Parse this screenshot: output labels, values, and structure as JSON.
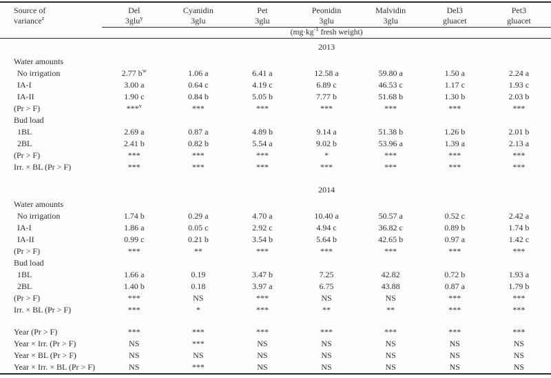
{
  "table": {
    "corner": {
      "line1": "Source of",
      "line2": "variance",
      "sup": "z"
    },
    "columns": [
      {
        "name": "Del",
        "sub": "3glu^y"
      },
      {
        "name": "Cyanidin",
        "sub": "3glu"
      },
      {
        "name": "Pet",
        "sub": "3glu"
      },
      {
        "name": "Peonidin",
        "sub": "3glu"
      },
      {
        "name": "Malvidin",
        "sub": "3glu"
      },
      {
        "name": "Del3",
        "sub": "gluacet"
      },
      {
        "name": "Pet3",
        "sub": "gluacet"
      }
    ],
    "units": {
      "prefix": "(mg·kg",
      "sup": "-1",
      "suffix": " fresh weight)"
    },
    "sections": [
      {
        "year": "2013",
        "rows": [
          {
            "label": "Water amounts"
          },
          {
            "label": "No irrigation",
            "indent": true,
            "values": [
              "2.77 b^w",
              "1.06 a",
              "6.41 a",
              "12.58 a",
              "59.80 a",
              "1.50 a",
              "2.24 a"
            ]
          },
          {
            "label": "IA-I",
            "indent": true,
            "values": [
              "3.00 a",
              "0.64 c",
              "4.19 c",
              "6.89 c",
              "46.53 c",
              "1.17 c",
              "1.93 c"
            ]
          },
          {
            "label": "IA-II",
            "indent": true,
            "values": [
              "1.90 c",
              "0.84 b",
              "5.05 b",
              "7.77 b",
              "51.68 b",
              "1.30 b",
              "2.03 b"
            ]
          },
          {
            "label": "(Pr > F)",
            "values": [
              "***^v",
              "***",
              "***",
              "***",
              "***",
              "***",
              "***"
            ]
          },
          {
            "label": "Bud load"
          },
          {
            "label": "1BL",
            "indent": true,
            "values": [
              "2.69 a",
              "0.87 a",
              "4.89 b",
              "9.14 a",
              "51.38 b",
              "1.26 b",
              "2.01 b"
            ]
          },
          {
            "label": "2BL",
            "indent": true,
            "values": [
              "2.41 b",
              "0.82 b",
              "5.54 a",
              "9.02 b",
              "53.96 a",
              "1.39 a",
              "2.13 a"
            ]
          },
          {
            "label": "(Pr > F)",
            "values": [
              "***",
              "***",
              "***",
              "*",
              "***",
              "***",
              "***"
            ]
          },
          {
            "label": "Irr. × BL (Pr > F)",
            "values": [
              "***",
              "***",
              "***",
              "***",
              "***",
              "***",
              "***"
            ]
          }
        ]
      },
      {
        "year": "2014",
        "rows": [
          {
            "label": "Water amounts"
          },
          {
            "label": "No irrigation",
            "indent": true,
            "values": [
              "1.74 b",
              "0.29 a",
              "4.70 a",
              "10.40 a",
              "50.57 a",
              "0.52 c",
              "2.42 a"
            ]
          },
          {
            "label": "IA-I",
            "indent": true,
            "values": [
              "1.86 a",
              "0.05 c",
              "2.92 c",
              "4.94 c",
              "36.82 c",
              "0.89 b",
              "1.74 b"
            ]
          },
          {
            "label": "IA-II",
            "indent": true,
            "values": [
              "0.99 c",
              "0.21 b",
              "3.54 b",
              "5.64 b",
              "42.65 b",
              "0.97 a",
              "1.42 c"
            ]
          },
          {
            "label": "(Pr > F)",
            "values": [
              "***",
              "**",
              "***",
              "***",
              "***",
              "***",
              "***"
            ]
          },
          {
            "label": "Bud load"
          },
          {
            "label": "1BL",
            "indent": true,
            "values": [
              "1.66 a",
              "0.19",
              "3.47 b",
              "7.25",
              "42.82",
              "0.72 b",
              "1.93 a"
            ]
          },
          {
            "label": "2BL",
            "indent": true,
            "values": [
              "1.40 b",
              "0.18",
              "3.97 a",
              "6.75",
              "43.88",
              "0.87 a",
              "1.79 b"
            ]
          },
          {
            "label": "(Pr > F)",
            "values": [
              "***",
              "NS",
              "***",
              "NS",
              "NS",
              "***",
              "***"
            ]
          },
          {
            "label": "Irr. × BL (Pr > F)",
            "values": [
              "***",
              "*",
              "***",
              "**",
              "**",
              "***",
              "***"
            ]
          }
        ]
      },
      {
        "rows": [
          {
            "label": "Year (Pr > F)",
            "values": [
              "***",
              "***",
              "***",
              "***",
              "***",
              "***",
              "***"
            ]
          },
          {
            "label": "Year × Irr. (Pr > F)",
            "values": [
              "NS",
              "***",
              "NS",
              "NS",
              "NS",
              "NS",
              "NS"
            ]
          },
          {
            "label": "Year × BL (Pr > F)",
            "values": [
              "NS",
              "NS",
              "NS",
              "NS",
              "NS",
              "NS",
              "NS"
            ]
          },
          {
            "label": "Year × Irr. × BL (Pr > F)",
            "values": [
              "NS",
              "***",
              "NS",
              "NS",
              "NS",
              "NS",
              "NS"
            ]
          }
        ]
      }
    ]
  }
}
